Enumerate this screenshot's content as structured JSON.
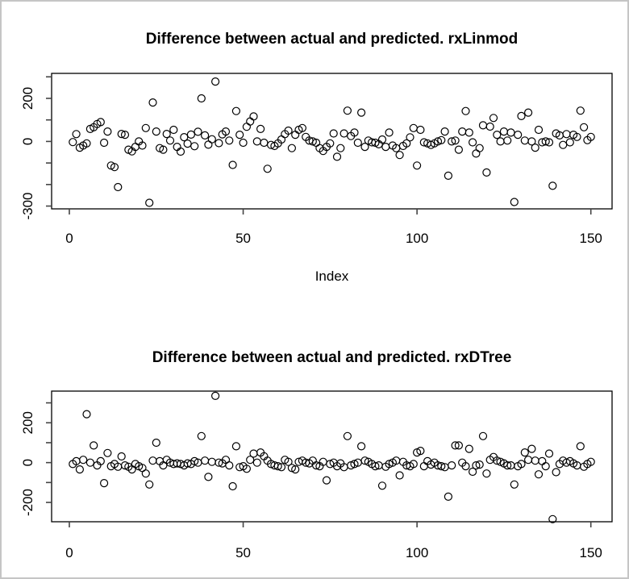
{
  "window_background": "#ffffff",
  "window_border_color": "#c5c5c5",
  "chart_data": [
    {
      "type": "scatter",
      "title": "Difference between actual and predicted. rxLinmod",
      "xlabel": "Index",
      "ylabel": "",
      "marker": "open-circle",
      "marker_color": "#000000",
      "grid": false,
      "legend": "none",
      "xlim": [
        -5.1,
        156.1
      ],
      "ylim": [
        -313,
        316
      ],
      "x_ticks": [
        {
          "v": 0,
          "label": "0"
        },
        {
          "v": 50,
          "label": "50"
        },
        {
          "v": 100,
          "label": "100"
        },
        {
          "v": 150,
          "label": "150"
        }
      ],
      "y_ticks": [
        {
          "v": 300,
          "label": ""
        },
        {
          "v": 200,
          "label": "200"
        },
        {
          "v": 100,
          "label": ""
        },
        {
          "v": 0,
          "label": "0"
        },
        {
          "v": -100,
          "label": ""
        },
        {
          "v": -200,
          "label": ""
        },
        {
          "v": -300,
          "label": "-300"
        }
      ],
      "points": [
        [
          1,
          -3
        ],
        [
          2,
          34
        ],
        [
          3,
          -29
        ],
        [
          4,
          -19
        ],
        [
          5,
          -9
        ],
        [
          6,
          58
        ],
        [
          7,
          66
        ],
        [
          8,
          81
        ],
        [
          9,
          90
        ],
        [
          10,
          -6
        ],
        [
          11,
          46
        ],
        [
          12,
          -112
        ],
        [
          13,
          -119
        ],
        [
          14,
          -212
        ],
        [
          15,
          35
        ],
        [
          16,
          31
        ],
        [
          17,
          -38
        ],
        [
          18,
          -46
        ],
        [
          19,
          -25
        ],
        [
          20,
          0
        ],
        [
          21,
          -19
        ],
        [
          22,
          62
        ],
        [
          23,
          -285
        ],
        [
          24,
          181
        ],
        [
          25,
          46
        ],
        [
          26,
          -31
        ],
        [
          27,
          -38
        ],
        [
          28,
          35
        ],
        [
          29,
          4
        ],
        [
          30,
          54
        ],
        [
          31,
          -25
        ],
        [
          32,
          -47
        ],
        [
          33,
          20
        ],
        [
          34,
          -10
        ],
        [
          35,
          32
        ],
        [
          36,
          -22
        ],
        [
          37,
          45
        ],
        [
          38,
          200
        ],
        [
          39,
          28
        ],
        [
          40,
          -15
        ],
        [
          41,
          10
        ],
        [
          42,
          278
        ],
        [
          43,
          -8
        ],
        [
          44,
          33
        ],
        [
          45,
          46
        ],
        [
          46,
          4
        ],
        [
          47,
          -109
        ],
        [
          48,
          141
        ],
        [
          49,
          31
        ],
        [
          50,
          -6
        ],
        [
          51,
          68
        ],
        [
          52,
          93
        ],
        [
          53,
          116
        ],
        [
          54,
          0
        ],
        [
          55,
          58
        ],
        [
          56,
          -6
        ],
        [
          57,
          -127
        ],
        [
          58,
          -16
        ],
        [
          59,
          -21
        ],
        [
          60,
          -9
        ],
        [
          61,
          9
        ],
        [
          62,
          34
        ],
        [
          63,
          50
        ],
        [
          64,
          -31
        ],
        [
          65,
          31
        ],
        [
          66,
          54
        ],
        [
          67,
          62
        ],
        [
          68,
          21
        ],
        [
          69,
          4
        ],
        [
          70,
          0
        ],
        [
          71,
          -6
        ],
        [
          72,
          -31
        ],
        [
          73,
          -44
        ],
        [
          74,
          -25
        ],
        [
          75,
          -9
        ],
        [
          76,
          37
        ],
        [
          77,
          -71
        ],
        [
          78,
          -31
        ],
        [
          79,
          37
        ],
        [
          80,
          143
        ],
        [
          81,
          25
        ],
        [
          82,
          41
        ],
        [
          83,
          -6
        ],
        [
          84,
          134
        ],
        [
          85,
          -25
        ],
        [
          86,
          4
        ],
        [
          87,
          -4
        ],
        [
          88,
          -6
        ],
        [
          89,
          -13
        ],
        [
          90,
          9
        ],
        [
          91,
          -25
        ],
        [
          92,
          41
        ],
        [
          93,
          -19
        ],
        [
          94,
          -31
        ],
        [
          95,
          -63
        ],
        [
          96,
          -21
        ],
        [
          97,
          -9
        ],
        [
          98,
          19
        ],
        [
          99,
          62
        ],
        [
          100,
          -112
        ],
        [
          101,
          54
        ],
        [
          102,
          -4
        ],
        [
          103,
          -9
        ],
        [
          104,
          -16
        ],
        [
          105,
          -9
        ],
        [
          106,
          0
        ],
        [
          107,
          6
        ],
        [
          108,
          46
        ],
        [
          109,
          -159
        ],
        [
          110,
          0
        ],
        [
          111,
          4
        ],
        [
          112,
          -38
        ],
        [
          113,
          46
        ],
        [
          114,
          141
        ],
        [
          115,
          41
        ],
        [
          116,
          -4
        ],
        [
          117,
          -56
        ],
        [
          118,
          -31
        ],
        [
          119,
          75
        ],
        [
          120,
          -144
        ],
        [
          121,
          69
        ],
        [
          122,
          109
        ],
        [
          123,
          31
        ],
        [
          124,
          0
        ],
        [
          125,
          46
        ],
        [
          126,
          4
        ],
        [
          127,
          41
        ],
        [
          128,
          -281
        ],
        [
          129,
          31
        ],
        [
          130,
          118
        ],
        [
          131,
          4
        ],
        [
          132,
          134
        ],
        [
          133,
          0
        ],
        [
          134,
          -29
        ],
        [
          135,
          54
        ],
        [
          136,
          -4
        ],
        [
          137,
          0
        ],
        [
          138,
          -4
        ],
        [
          139,
          -206
        ],
        [
          140,
          37
        ],
        [
          141,
          28
        ],
        [
          142,
          -16
        ],
        [
          143,
          34
        ],
        [
          144,
          -4
        ],
        [
          145,
          31
        ],
        [
          146,
          21
        ],
        [
          147,
          143
        ],
        [
          148,
          66
        ],
        [
          149,
          6
        ],
        [
          150,
          21
        ]
      ]
    },
    {
      "type": "scatter",
      "title": "Difference between actual and predicted. rxDTree",
      "xlabel": "",
      "ylabel": "",
      "marker": "open-circle",
      "marker_color": "#000000",
      "grid": false,
      "legend": "none",
      "xlim": [
        -5.1,
        156.1
      ],
      "ylim": [
        -297,
        359
      ],
      "x_ticks": [
        {
          "v": 0,
          "label": "0"
        },
        {
          "v": 50,
          "label": "50"
        },
        {
          "v": 100,
          "label": "100"
        },
        {
          "v": 150,
          "label": "150"
        }
      ],
      "y_ticks": [
        {
          "v": 300,
          "label": ""
        },
        {
          "v": 200,
          "label": "200"
        },
        {
          "v": 100,
          "label": ""
        },
        {
          "v": 0,
          "label": "0"
        },
        {
          "v": -100,
          "label": ""
        },
        {
          "v": -200,
          "label": "-200"
        }
      ],
      "points": [
        [
          1,
          -7
        ],
        [
          2,
          7
        ],
        [
          3,
          -34
        ],
        [
          4,
          14
        ],
        [
          5,
          243
        ],
        [
          6,
          0
        ],
        [
          7,
          86
        ],
        [
          8,
          -14
        ],
        [
          9,
          7
        ],
        [
          10,
          -103
        ],
        [
          11,
          48
        ],
        [
          12,
          -18
        ],
        [
          13,
          -7
        ],
        [
          14,
          -21
        ],
        [
          15,
          31
        ],
        [
          16,
          -14
        ],
        [
          17,
          -21
        ],
        [
          18,
          -34
        ],
        [
          19,
          -7
        ],
        [
          20,
          -18
        ],
        [
          21,
          -27
        ],
        [
          22,
          -55
        ],
        [
          23,
          -110
        ],
        [
          24,
          10
        ],
        [
          25,
          100
        ],
        [
          26,
          7
        ],
        [
          27,
          -14
        ],
        [
          28,
          14
        ],
        [
          29,
          0
        ],
        [
          30,
          -7
        ],
        [
          31,
          -4
        ],
        [
          32,
          -7
        ],
        [
          33,
          -14
        ],
        [
          34,
          -4
        ],
        [
          35,
          -7
        ],
        [
          36,
          7
        ],
        [
          37,
          0
        ],
        [
          38,
          133
        ],
        [
          39,
          10
        ],
        [
          40,
          -72
        ],
        [
          41,
          4
        ],
        [
          42,
          335
        ],
        [
          43,
          0
        ],
        [
          44,
          -4
        ],
        [
          45,
          14
        ],
        [
          46,
          -14
        ],
        [
          47,
          -119
        ],
        [
          48,
          82
        ],
        [
          49,
          -23
        ],
        [
          50,
          -18
        ],
        [
          51,
          -31
        ],
        [
          52,
          14
        ],
        [
          53,
          45
        ],
        [
          54,
          0
        ],
        [
          55,
          51
        ],
        [
          56,
          32
        ],
        [
          57,
          10
        ],
        [
          58,
          -7
        ],
        [
          59,
          -14
        ],
        [
          60,
          -18
        ],
        [
          61,
          -23
        ],
        [
          62,
          14
        ],
        [
          63,
          4
        ],
        [
          64,
          -27
        ],
        [
          65,
          -34
        ],
        [
          66,
          4
        ],
        [
          67,
          10
        ],
        [
          68,
          0
        ],
        [
          69,
          -4
        ],
        [
          70,
          10
        ],
        [
          71,
          -14
        ],
        [
          72,
          -18
        ],
        [
          73,
          4
        ],
        [
          74,
          -89
        ],
        [
          75,
          -7
        ],
        [
          76,
          0
        ],
        [
          77,
          -18
        ],
        [
          78,
          -4
        ],
        [
          79,
          -23
        ],
        [
          80,
          133
        ],
        [
          81,
          -14
        ],
        [
          82,
          -7
        ],
        [
          83,
          0
        ],
        [
          84,
          82
        ],
        [
          85,
          10
        ],
        [
          86,
          4
        ],
        [
          87,
          -7
        ],
        [
          88,
          -18
        ],
        [
          89,
          -14
        ],
        [
          90,
          -116
        ],
        [
          91,
          -21
        ],
        [
          92,
          -7
        ],
        [
          93,
          0
        ],
        [
          94,
          10
        ],
        [
          95,
          -64
        ],
        [
          96,
          4
        ],
        [
          97,
          -14
        ],
        [
          98,
          -18
        ],
        [
          99,
          -7
        ],
        [
          100,
          51
        ],
        [
          101,
          59
        ],
        [
          102,
          -18
        ],
        [
          103,
          7
        ],
        [
          104,
          -10
        ],
        [
          105,
          0
        ],
        [
          106,
          -14
        ],
        [
          107,
          -18
        ],
        [
          108,
          -23
        ],
        [
          109,
          -171
        ],
        [
          110,
          -14
        ],
        [
          111,
          86
        ],
        [
          112,
          86
        ],
        [
          113,
          0
        ],
        [
          114,
          -18
        ],
        [
          115,
          69
        ],
        [
          116,
          -46
        ],
        [
          117,
          -14
        ],
        [
          118,
          -10
        ],
        [
          119,
          133
        ],
        [
          120,
          -55
        ],
        [
          121,
          14
        ],
        [
          122,
          28
        ],
        [
          123,
          10
        ],
        [
          124,
          4
        ],
        [
          125,
          -4
        ],
        [
          126,
          -14
        ],
        [
          127,
          -14
        ],
        [
          128,
          -110
        ],
        [
          129,
          -18
        ],
        [
          130,
          -7
        ],
        [
          131,
          51
        ],
        [
          132,
          14
        ],
        [
          133,
          69
        ],
        [
          134,
          10
        ],
        [
          135,
          -59
        ],
        [
          136,
          7
        ],
        [
          137,
          -18
        ],
        [
          138,
          45
        ],
        [
          139,
          -284
        ],
        [
          140,
          -48
        ],
        [
          141,
          -7
        ],
        [
          142,
          10
        ],
        [
          143,
          0
        ],
        [
          144,
          7
        ],
        [
          145,
          -4
        ],
        [
          146,
          -14
        ],
        [
          147,
          82
        ],
        [
          148,
          -21
        ],
        [
          149,
          -7
        ],
        [
          150,
          4
        ]
      ]
    }
  ]
}
